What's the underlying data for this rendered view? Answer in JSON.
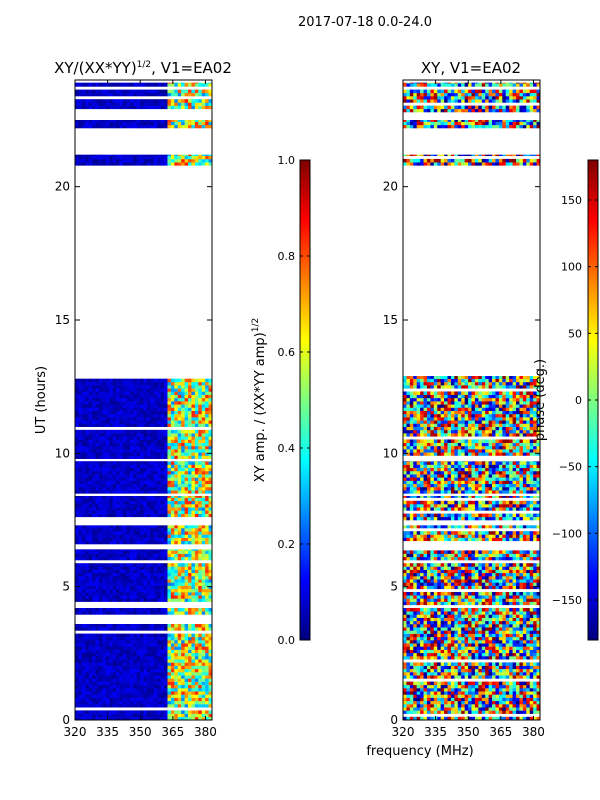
{
  "suptitle": "2017-07-18 0.0-24.0",
  "xlabel": "frequency (MHz)",
  "colors": {
    "jet": [
      "#00007f",
      "#0000ff",
      "#007fff",
      "#00ffff",
      "#7fff7f",
      "#ffff00",
      "#ff7f00",
      "#ff0000",
      "#7f0000"
    ]
  },
  "chart_data": [
    {
      "type": "heatmap",
      "title_main": "XY/(XX*YY)",
      "title_exp": "1/2",
      "title_tail": ", V1=EA02",
      "ylabel": "UT (hours)",
      "xlim": [
        320,
        383
      ],
      "ylim": [
        0,
        24
      ],
      "xticks": [
        320,
        335,
        350,
        365,
        380
      ],
      "yticks": [
        0,
        5,
        10,
        15,
        20
      ],
      "colorbar": {
        "label_main": "XY amp. / (XX*YY amp)",
        "label_exp": "1/2",
        "range": [
          0.0,
          1.0
        ],
        "ticks": [
          "0.0",
          "0.2",
          "0.4",
          "0.6",
          "0.8",
          "1.0"
        ],
        "tick_values": [
          0.0,
          0.2,
          0.4,
          0.6,
          0.8,
          1.0
        ]
      },
      "data_rows_ut": [
        [
          0.0,
          6.4
        ],
        [
          6.6,
          7.3
        ],
        [
          7.5,
          8.4
        ],
        [
          8.5,
          9.7
        ],
        [
          9.8,
          12.9
        ],
        [
          20.8,
          21.2
        ],
        [
          22.2,
          22.5
        ],
        [
          22.8,
          23.9
        ]
      ],
      "description_values": "amplitude ratio mostly near 0.0-0.1 below 361 MHz; 0.3-0.8 between 361-383 MHz"
    },
    {
      "type": "heatmap",
      "title_main": "XY",
      "title_tail": ", V1=EA02",
      "ylabel": "",
      "xlim": [
        320,
        383
      ],
      "ylim": [
        0,
        24
      ],
      "xticks": [
        320,
        335,
        350,
        365,
        380
      ],
      "yticks": [
        0,
        5,
        10,
        15,
        20
      ],
      "colorbar": {
        "label_main": "phase (deg.)",
        "range": [
          -180,
          180
        ],
        "ticks": [
          "150",
          "100",
          "50",
          "0",
          "−50",
          "−100",
          "−150"
        ],
        "tick_values": [
          150,
          100,
          50,
          0,
          -50,
          -100,
          -150
        ]
      },
      "data_rows_ut": [
        [
          0.0,
          6.4
        ],
        [
          6.6,
          7.3
        ],
        [
          7.5,
          8.4
        ],
        [
          8.5,
          9.7
        ],
        [
          9.8,
          12.9
        ],
        [
          20.8,
          21.2
        ],
        [
          22.2,
          22.5
        ],
        [
          22.8,
          23.9
        ]
      ],
      "description_values": "phase spans -180 to 180 degrees across all frequencies"
    }
  ]
}
